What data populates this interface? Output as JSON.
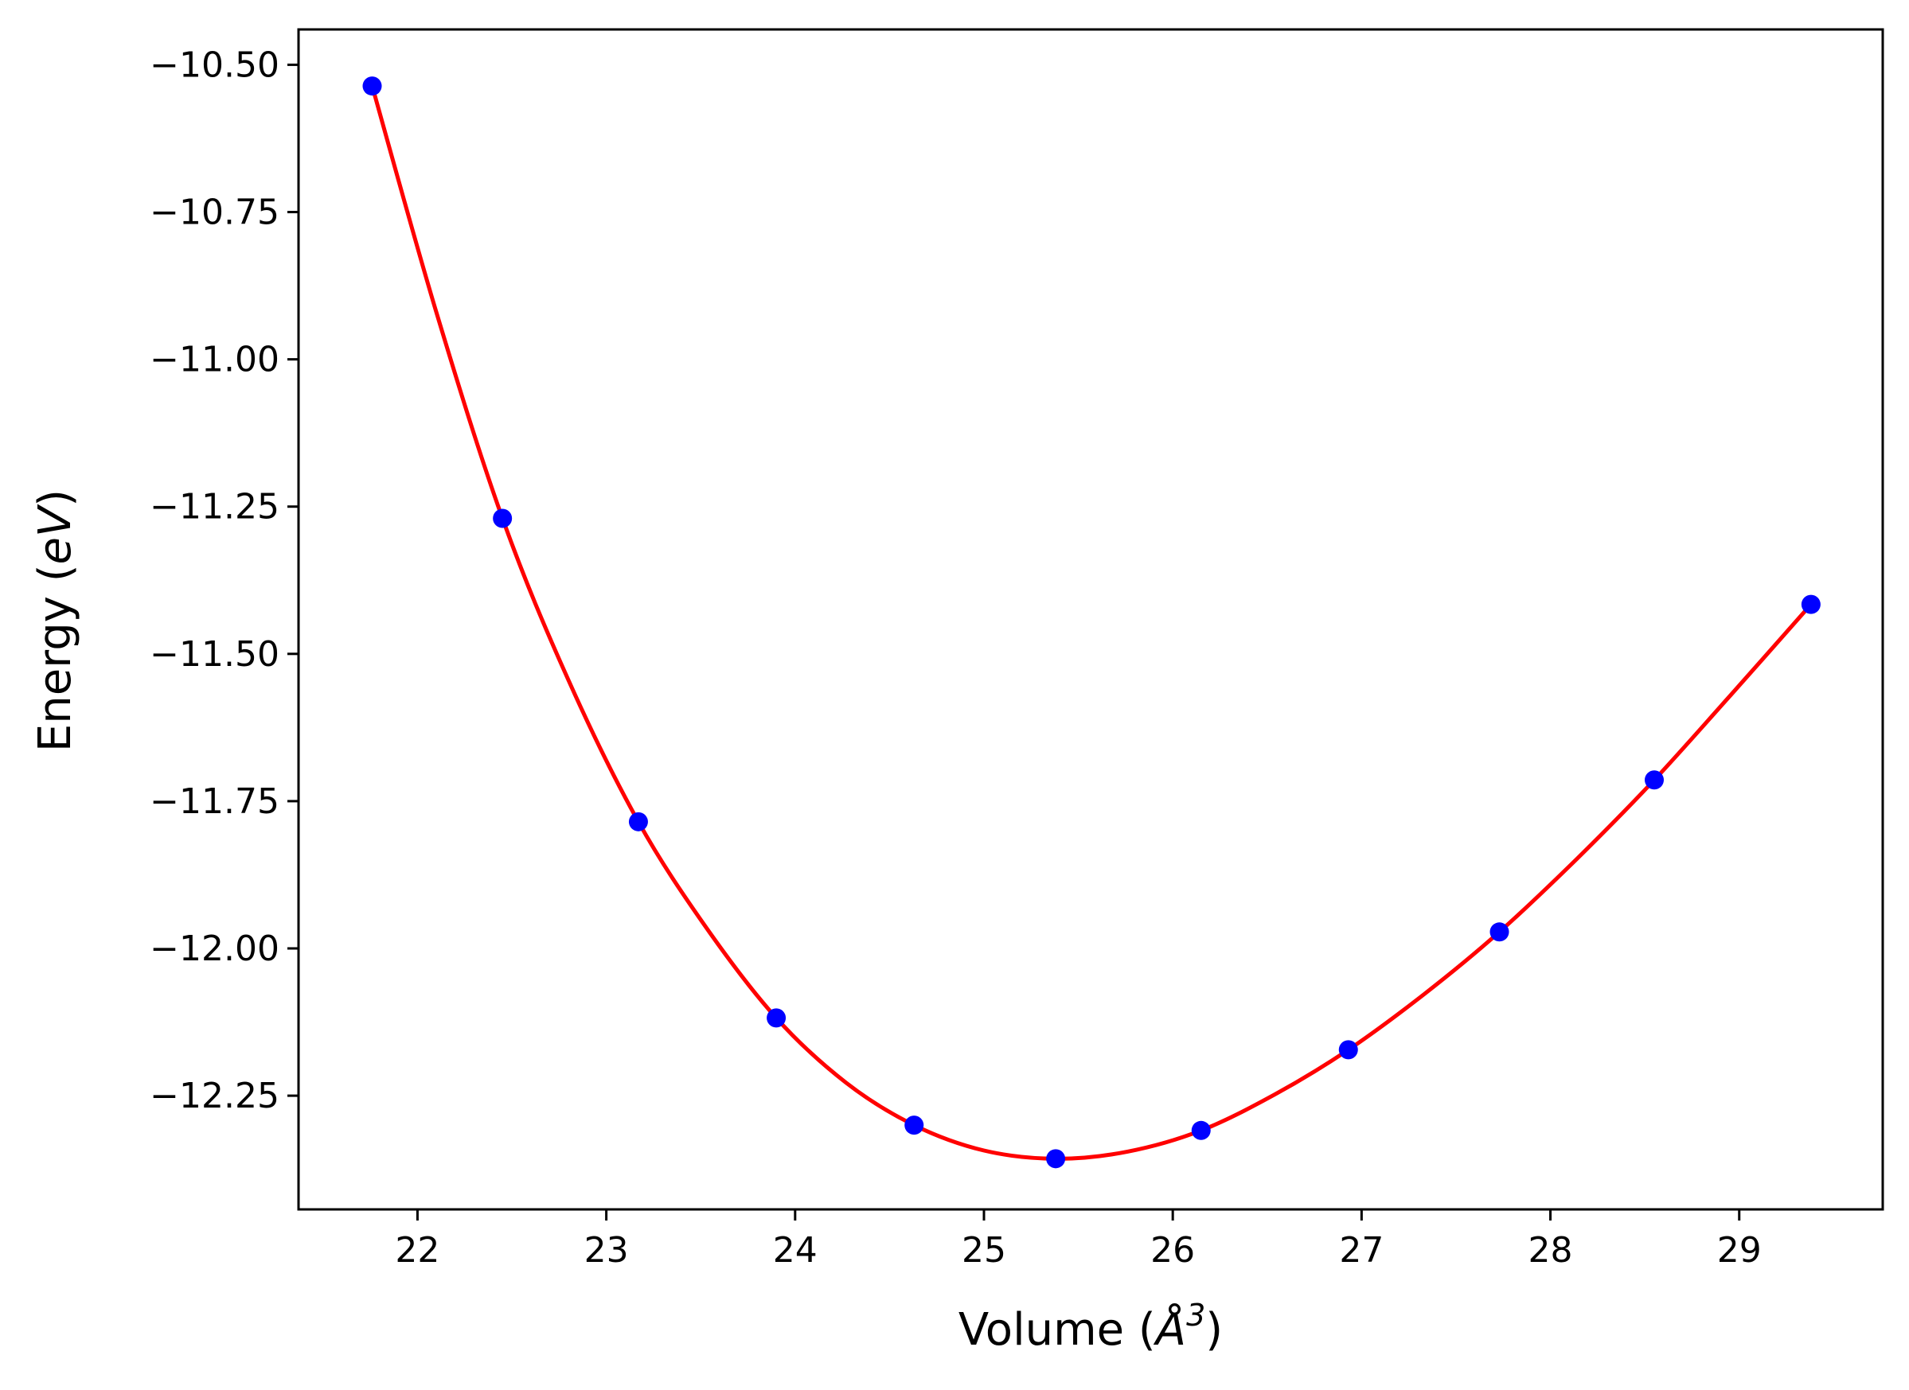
{
  "chart_data": {
    "type": "scatter",
    "title": "",
    "xlabel": {
      "prefix": "Volume (",
      "symbol": "Å",
      "superscript": "3",
      "suffix": ")"
    },
    "ylabel": {
      "prefix": "Energy (",
      "symbol": "eV",
      "suffix": ")"
    },
    "xlim": [
      21.37,
      29.76
    ],
    "ylim": [
      -12.443,
      -10.44
    ],
    "x_ticks": [
      22,
      23,
      24,
      25,
      26,
      27,
      28,
      29
    ],
    "x_tick_labels": [
      "22",
      "23",
      "24",
      "25",
      "26",
      "27",
      "28",
      "29"
    ],
    "y_ticks": [
      -10.5,
      -10.75,
      -11.0,
      -11.25,
      -11.5,
      -11.75,
      -12.0,
      -12.25
    ],
    "y_tick_labels": [
      "−10.50",
      "−10.75",
      "−11.00",
      "−11.25",
      "−11.50",
      "−11.75",
      "−12.00",
      "−12.25"
    ],
    "grid": false,
    "legend": "none",
    "series": [
      {
        "kind": "points",
        "color": "#0000ff",
        "x": [
          21.76,
          22.45,
          23.17,
          23.9,
          24.63,
          25.38,
          26.15,
          26.93,
          27.73,
          28.55,
          29.38
        ],
        "y": [
          -10.536,
          -11.27,
          -11.785,
          -12.118,
          -12.3,
          -12.357,
          -12.309,
          -12.172,
          -11.972,
          -11.714,
          -11.416
        ]
      },
      {
        "kind": "fitted-curve",
        "color": "#ff0000",
        "x": [
          21.76,
          22.1,
          22.45,
          22.8,
          23.17,
          23.53,
          23.9,
          24.27,
          24.63,
          25.0,
          25.38,
          25.76,
          26.15,
          26.54,
          26.93,
          27.33,
          27.73,
          28.14,
          28.55,
          28.96,
          29.38
        ],
        "y": [
          -10.536,
          -10.92,
          -11.27,
          -11.545,
          -11.785,
          -11.965,
          -12.118,
          -12.228,
          -12.3,
          -12.343,
          -12.357,
          -12.345,
          -12.309,
          -12.248,
          -12.172,
          -12.078,
          -11.972,
          -11.848,
          -11.714,
          -11.568,
          -11.416
        ]
      }
    ]
  }
}
